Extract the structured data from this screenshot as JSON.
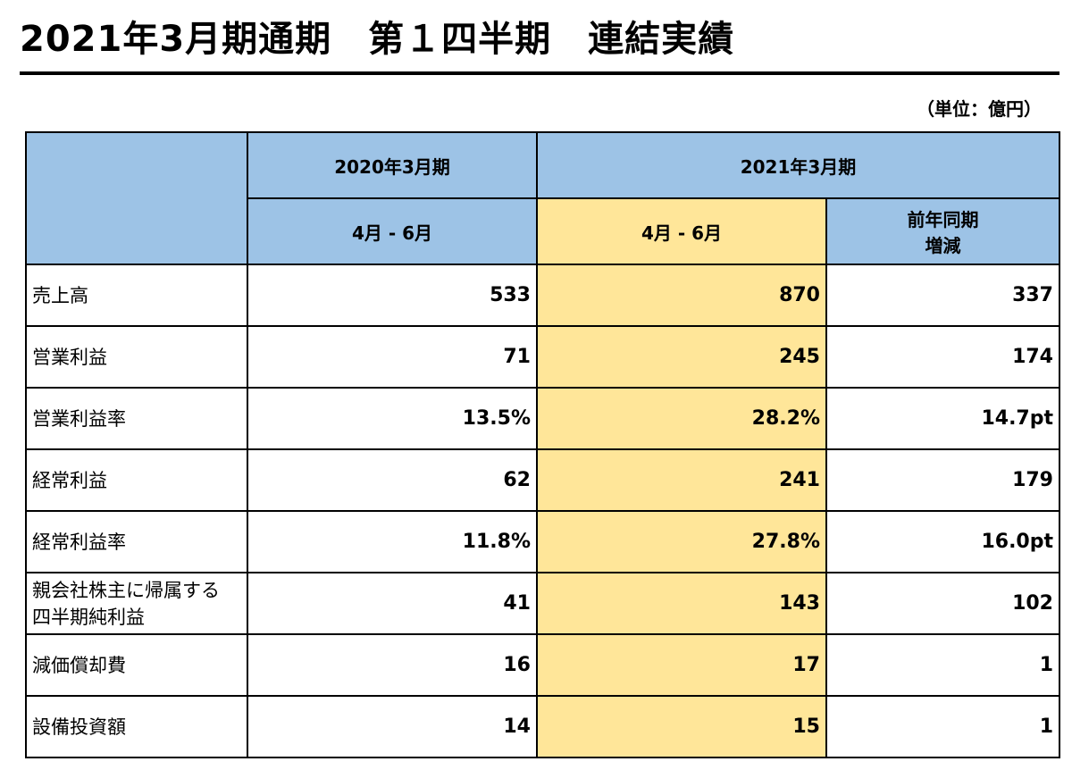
{
  "title": "2021年3月期通期　第１四半期　連結実績",
  "unit": "（単位：億円）",
  "table": {
    "group_prev": "2020年3月期",
    "group_curr": "2021年3月期",
    "sub_prev": "4月 - 6月",
    "sub_curr": "4月 - 6月",
    "sub_diff_line1": "前年同期",
    "sub_diff_line2": "増減",
    "rows": [
      {
        "label": "売上高",
        "prev": "533",
        "curr": "870",
        "diff": "337"
      },
      {
        "label": "営業利益",
        "prev": "71",
        "curr": "245",
        "diff": "174"
      },
      {
        "label": "営業利益率",
        "prev": "13.5%",
        "curr": "28.2%",
        "diff": "14.7pt"
      },
      {
        "label": "経常利益",
        "prev": "62",
        "curr": "241",
        "diff": "179"
      },
      {
        "label": "経常利益率",
        "prev": "11.8%",
        "curr": "27.8%",
        "diff": "16.0pt"
      },
      {
        "label_line1": "親会社株主に帰属する",
        "label_line2": "四半期純利益",
        "prev": "41",
        "curr": "143",
        "diff": "102"
      },
      {
        "label": "減価償却費",
        "prev": "16",
        "curr": "17",
        "diff": "1"
      },
      {
        "label": "設備投資額",
        "prev": "14",
        "curr": "15",
        "diff": "1"
      }
    ]
  },
  "colors": {
    "header_blue": "#9dc3e6",
    "highlight_yellow": "#ffe699"
  }
}
